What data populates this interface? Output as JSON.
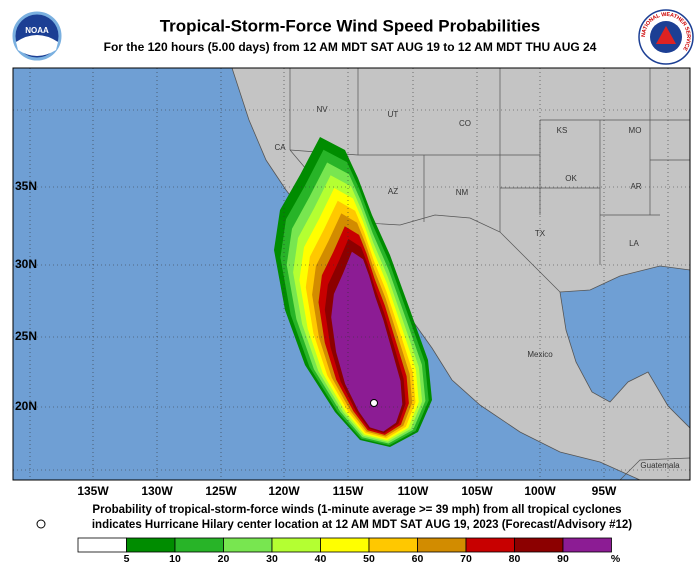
{
  "header": {
    "title": "Tropical-Storm-Force Wind Speed Probabilities",
    "subtitle": "For the 120 hours (5.00 days) from 12 AM MDT SAT AUG 19 to 12 AM MDT THU AUG 24",
    "left_logo": "NOAA",
    "right_logo": "NATIONAL WEATHER SERVICE"
  },
  "map": {
    "longitude_labels": [
      "135W",
      "130W",
      "125W",
      "120W",
      "115W",
      "110W",
      "105W",
      "100W",
      "95W"
    ],
    "latitude_labels": [
      "35N",
      "30N",
      "25N",
      "20N"
    ],
    "region_labels": [
      "NV",
      "UT",
      "CO",
      "KS",
      "MO",
      "CA",
      "AZ",
      "NM",
      "OK",
      "AR",
      "TX",
      "LA",
      "Mexico",
      "Guatemala"
    ]
  },
  "footer": {
    "line1": "Probability of tropical-storm-force winds (1-minute average >= 39 mph) from all tropical cyclones",
    "line2": "indicates Hurricane Hilary center location at 12 AM MDT SAT AUG 19, 2023 (Forecast/Advisory #12)"
  },
  "legend": {
    "thresholds": [
      5,
      10,
      20,
      30,
      40,
      50,
      60,
      70,
      80,
      90
    ],
    "unit": "%",
    "colors": [
      "#ffffff",
      "#008c00",
      "#28b428",
      "#78e650",
      "#b4ff32",
      "#ffff00",
      "#ffc800",
      "#d28c00",
      "#c80000",
      "#8c0000",
      "#8c1c94"
    ]
  }
}
